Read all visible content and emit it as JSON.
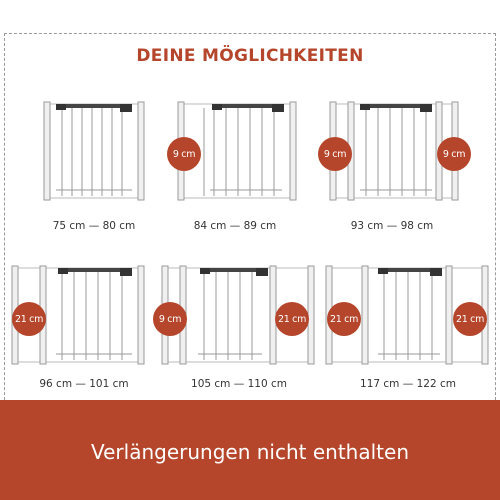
{
  "title": "DEINE MÖGLICHKEITEN",
  "configurations": [
    {
      "size": "75 cm — 80 cm",
      "extensions": []
    },
    {
      "size": "84 cm — 89 cm",
      "extensions": [
        "9 cm"
      ]
    },
    {
      "size": "93 cm — 98 cm",
      "extensions": [
        "9 cm",
        "9 cm"
      ]
    },
    {
      "size": "96 cm — 101 cm",
      "extensions": [
        "21 cm"
      ]
    },
    {
      "size": "105 cm — 110 cm",
      "extensions": [
        "9 cm",
        "21 cm"
      ]
    },
    {
      "size": "117 cm — 122 cm",
      "extensions": [
        "21 cm",
        "21 cm"
      ]
    }
  ],
  "footer": "Verlängerungen nicht enthalten",
  "colors": {
    "accent": "#b5462b",
    "frame_border": "#9a9a9a"
  },
  "icons": [
    "gate-icon",
    "extension-icon"
  ]
}
